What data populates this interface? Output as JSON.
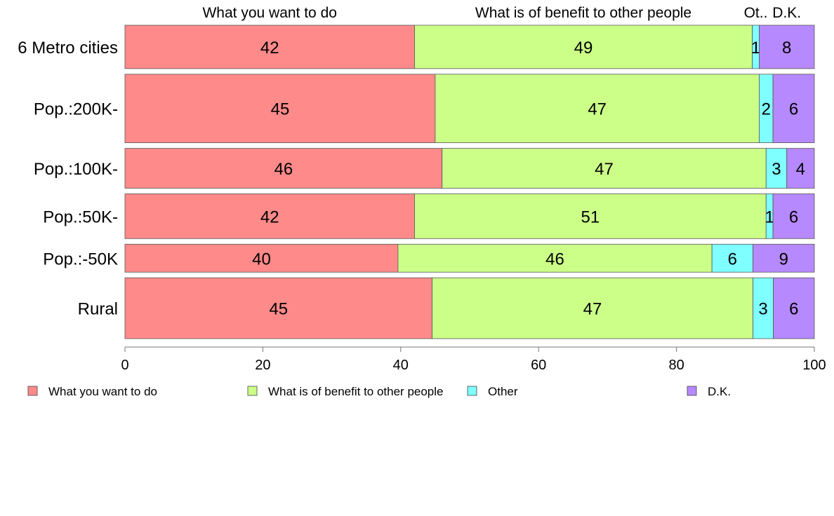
{
  "chart_data": {
    "type": "bar",
    "orientation": "horizontal",
    "stacked": true,
    "categories": [
      "6 Metro cities",
      "Pop.:200K-",
      "Pop.:100K-",
      "Pop.:50K-",
      "Pop.:-50K",
      "Rural"
    ],
    "category_weights": [
      62,
      98,
      57,
      64,
      40,
      87
    ],
    "series": [
      {
        "name": "What you want to do",
        "color": "#FF8A8A",
        "values": [
          42,
          45,
          46,
          42,
          40,
          45
        ],
        "labels": [
          "42",
          "45",
          "46",
          "42",
          "40",
          "45"
        ]
      },
      {
        "name": "What is of benefit to other people",
        "color": "#CCFF88",
        "values": [
          49,
          47,
          47,
          51,
          46,
          47
        ],
        "labels": [
          "49",
          "47",
          "47",
          "51",
          "46",
          "47"
        ]
      },
      {
        "name": "Other",
        "color": "#7FFFFF",
        "values": [
          1,
          2,
          3,
          1,
          6,
          3
        ],
        "labels": [
          "1",
          "2",
          "3",
          "1",
          "6",
          "3"
        ]
      },
      {
        "name": "D.K.",
        "color": "#B689FF",
        "values": [
          8,
          6,
          4,
          6,
          9,
          6
        ],
        "labels": [
          "8",
          "6",
          "4",
          "6",
          "9",
          "6"
        ]
      }
    ],
    "top_headers": [
      "What you want to do",
      "What is of benefit to other people",
      "Ot..",
      "D.K."
    ],
    "header_reference_row": 0,
    "xlim": [
      0,
      100
    ],
    "xticks": [
      0,
      20,
      40,
      60,
      80,
      100
    ],
    "xtick_labels": [
      "0",
      "20",
      "40",
      "60",
      "80",
      "100"
    ],
    "title": "",
    "xlabel": "",
    "ylabel": "",
    "grid": false,
    "legend_position": "bottom"
  }
}
